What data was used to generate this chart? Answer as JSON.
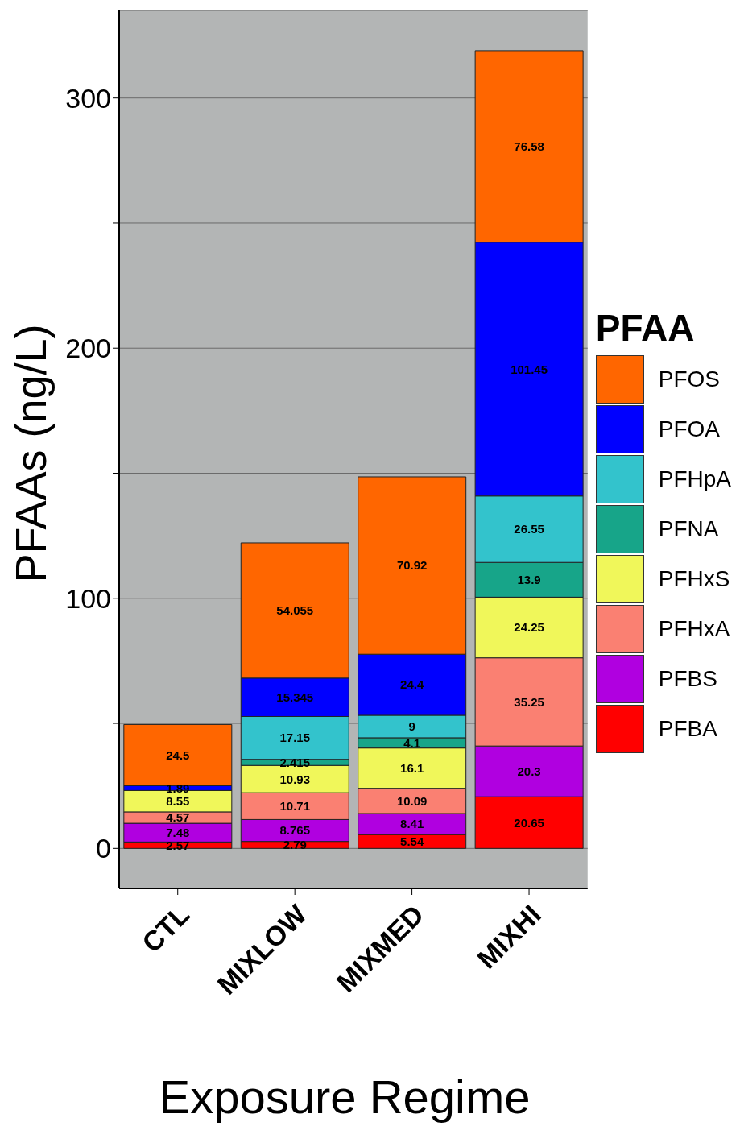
{
  "chart_data": {
    "type": "bar",
    "stacked": true,
    "xlabel": "Exposure Regime",
    "ylabel": "PFAAs (ng/L)",
    "legend_title": "PFAA",
    "categories": [
      "CTL",
      "MIXLOW",
      "MIXMED",
      "MIXHI"
    ],
    "series": [
      {
        "name": "PFBA",
        "color": "#ff0000",
        "values": [
          2.57,
          2.79,
          5.54,
          20.65
        ]
      },
      {
        "name": "PFBS",
        "color": "#b000e0",
        "values": [
          7.48,
          8.765,
          8.41,
          20.3
        ]
      },
      {
        "name": "PFHxA",
        "color": "#fa8072",
        "values": [
          4.57,
          10.71,
          10.09,
          35.25
        ]
      },
      {
        "name": "PFHxS",
        "color": "#f0f75a",
        "values": [
          8.55,
          10.93,
          16.1,
          24.25
        ]
      },
      {
        "name": "PFNA",
        "color": "#17a589",
        "values": [
          null,
          2.415,
          4.1,
          13.9
        ]
      },
      {
        "name": "PFHpA",
        "color": "#33c3cc",
        "values": [
          null,
          17.15,
          9,
          26.55
        ]
      },
      {
        "name": "PFOA",
        "color": "#0000ff",
        "values": [
          1.89,
          15.345,
          24.4,
          101.45
        ]
      },
      {
        "name": "PFOS",
        "color": "#ff6600",
        "values": [
          24.5,
          54.055,
          70.92,
          76.58
        ]
      }
    ],
    "ylim": [
      -16,
      335
    ],
    "yticks": [
      0,
      {
        "value": 50,
        "label": null
      },
      100,
      {
        "value": 150,
        "label": null
      },
      200,
      {
        "value": 250,
        "label": null
      },
      300
    ],
    "grid": "y",
    "legend": "right",
    "data_labels": true
  }
}
